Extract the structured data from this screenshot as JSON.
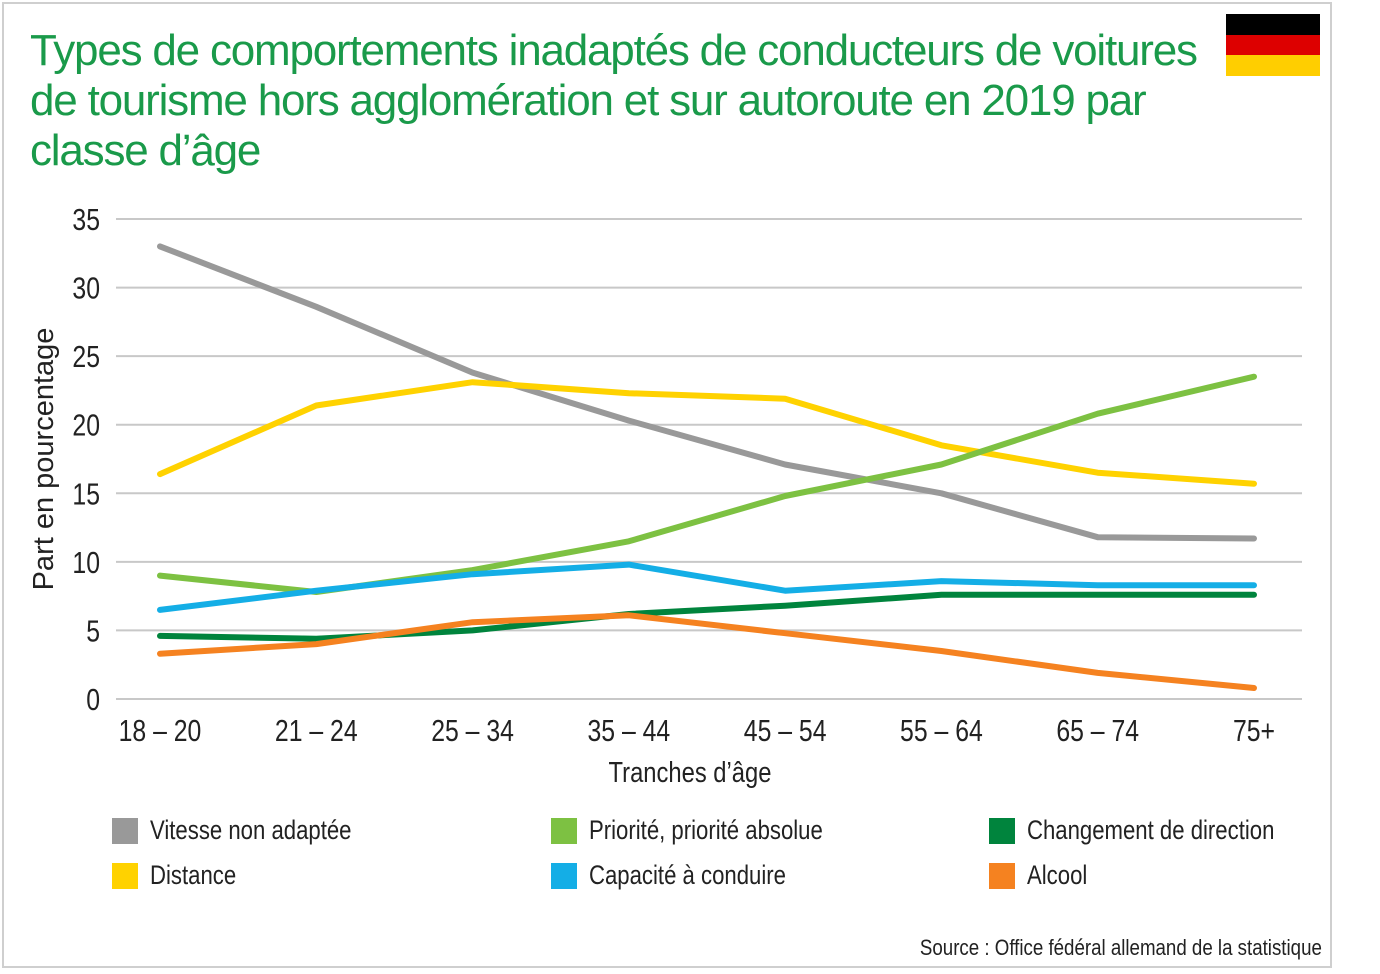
{
  "chart_data": {
    "type": "line",
    "title": "Types de comportements inadaptés de conducteurs de voitures de tourisme hors agglomération et sur autoroute en 2019 par classe d’âge",
    "xlabel": "Tranches d’âge",
    "ylabel": "Part en pourcentage",
    "ylim": [
      0,
      35
    ],
    "yticks": [
      0,
      5,
      10,
      15,
      20,
      25,
      30,
      35
    ],
    "grid": true,
    "legend_position": "bottom",
    "categories": [
      "18 – 20",
      "21 – 24",
      "25 – 34",
      "35 – 44",
      "45 – 54",
      "55 – 64",
      "65 – 74",
      "75+"
    ],
    "series": [
      {
        "name": "Vitesse non adaptée",
        "color": "#999999",
        "values": [
          33.0,
          28.6,
          23.8,
          20.3,
          17.1,
          15.0,
          11.8,
          11.7
        ]
      },
      {
        "name": "Distance",
        "color": "#ffd200",
        "values": [
          16.4,
          21.4,
          23.1,
          22.3,
          21.9,
          18.5,
          16.5,
          15.7
        ]
      },
      {
        "name": "Priorité, priorité absolue",
        "color": "#7dc142",
        "values": [
          9.0,
          7.8,
          9.4,
          11.5,
          14.8,
          17.1,
          20.8,
          23.5
        ]
      },
      {
        "name": "Capacité à conduire",
        "color": "#14aee6",
        "values": [
          6.5,
          7.9,
          9.1,
          9.8,
          7.9,
          8.6,
          8.3,
          8.3
        ]
      },
      {
        "name": "Changement de direction",
        "color": "#00843d",
        "values": [
          4.6,
          4.4,
          5.0,
          6.2,
          6.8,
          7.6,
          7.6,
          7.6
        ]
      },
      {
        "name": "Alcool",
        "color": "#f58220",
        "values": [
          3.3,
          4.0,
          5.6,
          6.1,
          4.8,
          3.5,
          1.9,
          0.8
        ]
      }
    ]
  },
  "legend": {
    "items": [
      {
        "label": "Vitesse non adaptée",
        "color": "#999999"
      },
      {
        "label": "Priorité, priorité absolue",
        "color": "#7dc142"
      },
      {
        "label": "Changement de direction",
        "color": "#00843d"
      },
      {
        "label": "Distance",
        "color": "#ffd200"
      },
      {
        "label": "Capacité à conduire",
        "color": "#14aee6"
      },
      {
        "label": "Alcool",
        "color": "#f58220"
      }
    ]
  },
  "flag": {
    "colors": [
      "#000000",
      "#dd0000",
      "#ffce00"
    ]
  },
  "source": "Source : Office fédéral allemand de la statistique"
}
